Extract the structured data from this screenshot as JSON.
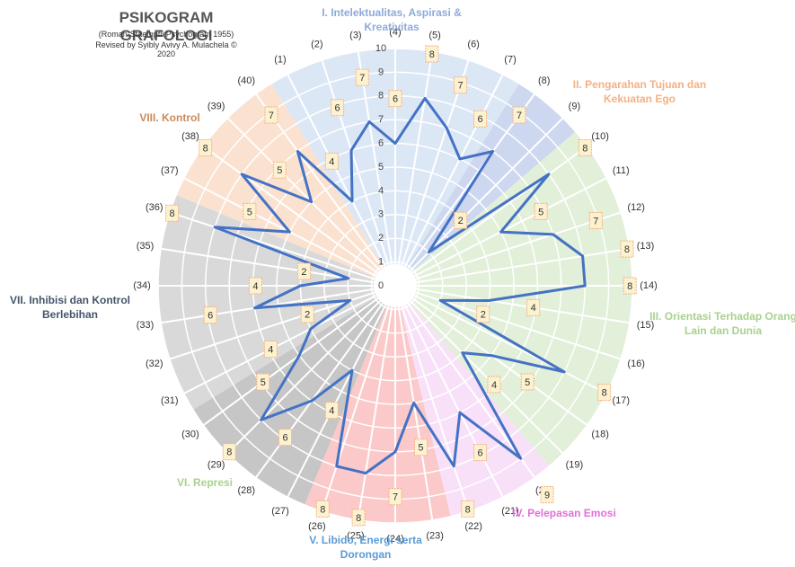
{
  "chart_data": {
    "type": "radar",
    "title": "PSIKOGRAM GRAFOLOGI",
    "subtitle": "(Roman-Staempfli Psychogram 1955)",
    "credit": "Revised by Syibly Avivy A. Mulachela © 2020",
    "categories": [
      "(1)",
      "(2)",
      "(3)",
      "(4)",
      "(5)",
      "(6)",
      "(7)",
      "(8)",
      "(9)",
      "(10)",
      "(11)",
      "(12)",
      "(13)",
      "(14)",
      "(15)",
      "(16)",
      "(17)",
      "(18)",
      "(19)",
      "(20)",
      "(21)",
      "(22)",
      "(23)",
      "(24)",
      "(25)",
      "(26)",
      "(27)",
      "(28)",
      "(29)",
      "(30)",
      "(31)",
      "(32)",
      "(33)",
      "(34)",
      "(35)",
      "(36)",
      "(37)",
      "(38)",
      "(39)",
      "(40)"
    ],
    "series": [
      {
        "color": "#4472c4",
        "values": [
          4,
          6,
          7,
          6,
          8,
          7,
          6,
          7,
          2,
          8,
          5,
          7,
          8,
          8,
          4,
          2,
          8,
          5,
          4,
          9,
          6,
          8,
          5,
          7,
          8,
          8,
          4,
          6,
          8,
          5,
          4,
          2,
          6,
          4,
          2,
          8,
          5,
          8,
          5,
          7
        ]
      }
    ],
    "rlim": [
      0,
      10
    ],
    "rticks": [
      0,
      1,
      2,
      3,
      4,
      5,
      6,
      7,
      8,
      9,
      10
    ],
    "groups": [
      {
        "name": "I. Intelektualitas, Aspirasi & Kreativitas",
        "color": "#dce7f6",
        "label_color": "#8eaadb",
        "first": 0,
        "last": 6
      },
      {
        "name": "II. Pengarahan Tujuan dan Kekuatan Ego",
        "color": "#cdd8f0",
        "label_color": "#f4b183",
        "first": 7,
        "last": 8
      },
      {
        "name": "III. Orientasi Terhadap Orang Lain dan Dunia",
        "color": "#e2efd9",
        "label_color": "#a9d18e",
        "first": 9,
        "last": 18
      },
      {
        "name": "IV. Pelepasan Emosi",
        "color": "#f8e0f8",
        "label_color": "#e36fd9",
        "first": 19,
        "last": 21
      },
      {
        "name": "V. Libido, Energi serta Dorongan",
        "color": "#fbc9c9",
        "label_color": "#5b9bd5",
        "first": 22,
        "last": 25
      },
      {
        "name": "VI. Represi",
        "color": "#c6c6c6",
        "label_color": "#a9d18e",
        "first": 26,
        "last": 29
      },
      {
        "name": "VII. Inhibisi dan Kontrol Berlebihan",
        "color": "#d9d9d9",
        "label_color": "#44546a",
        "first": 30,
        "last": 35
      },
      {
        "name": "VIII. Kontrol",
        "color": "#fbe1cf",
        "label_color": "#c98a5a",
        "first": 36,
        "last": 39
      }
    ]
  }
}
